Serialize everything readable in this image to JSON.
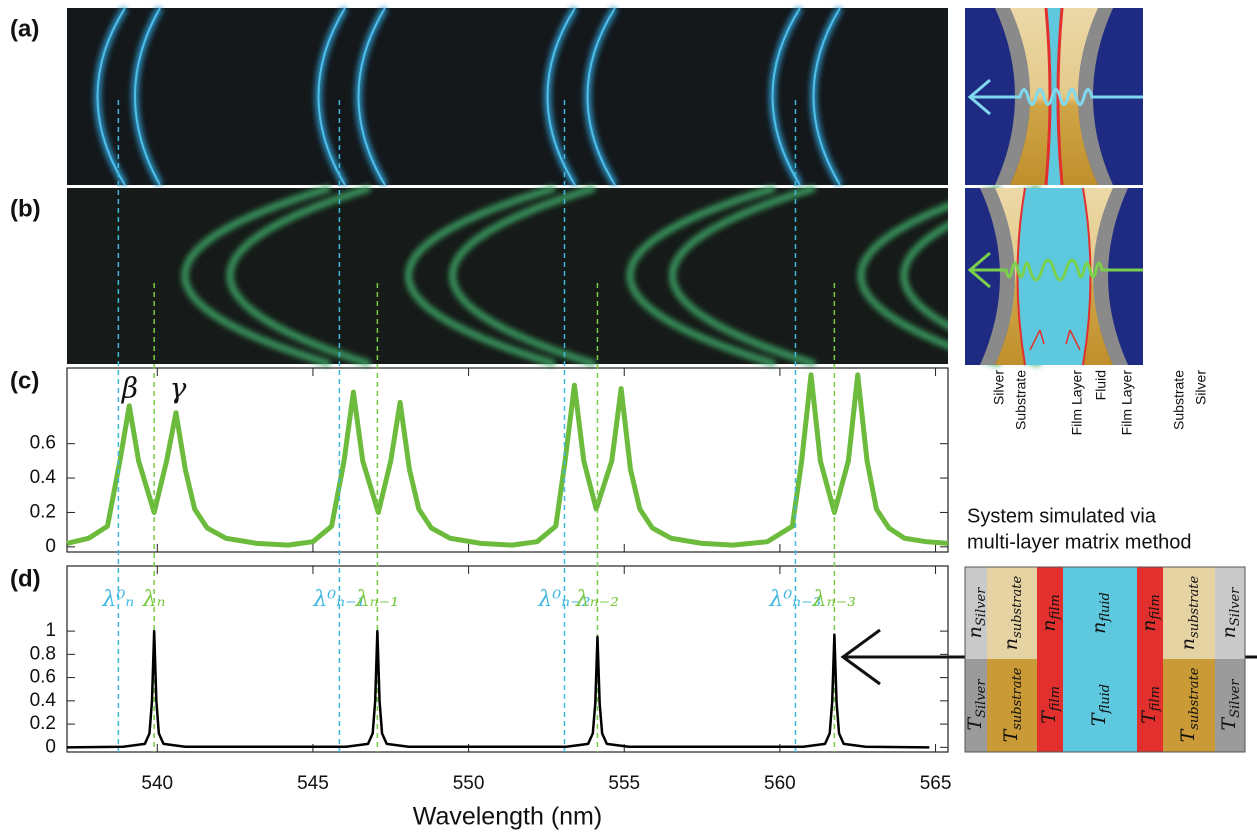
{
  "panel_labels": [
    "(a)",
    "(b)"
  ],
  "diagram": {
    "layer_labels": [
      "Silver",
      "Substrate",
      "Film Layer",
      "Fluid",
      "Film Layer",
      "Substrate",
      "Silver"
    ],
    "caption_lines": [
      "System simulated via",
      "multi-layer matrix method"
    ],
    "symbols": [
      "n",
      "T"
    ],
    "layers": [
      {
        "subscript": "Silver",
        "colors": [
          "#c9c9c9",
          "#9b9b9b"
        ]
      },
      {
        "subscript": "substrate",
        "colors": [
          "#e6d3a3",
          "#c99a35"
        ]
      },
      {
        "subscript": "film",
        "colors": [
          "#e2302e",
          "#e2302e"
        ]
      },
      {
        "subscript": "fluid",
        "colors": [
          "#5ec8de",
          "#5ec8de"
        ]
      },
      {
        "subscript": "film",
        "colors": [
          "#e2302e",
          "#e2302e"
        ]
      },
      {
        "subscript": "substrate",
        "colors": [
          "#e6d3a3",
          "#c99a35"
        ]
      },
      {
        "subscript": "Silver",
        "colors": [
          "#c9c9c9",
          "#9b9b9b"
        ]
      }
    ]
  },
  "chart_data": [
    {
      "type": "line",
      "label": "(c)",
      "show_xtick_labels": false,
      "xlim": [
        537.1,
        565.4
      ],
      "xticks": [
        540,
        545,
        550,
        555,
        560,
        565
      ],
      "ylim": [
        -0.03,
        1.04
      ],
      "yticks": [
        0,
        0.2,
        0.4,
        0.6
      ],
      "annotations": [
        "β",
        "γ"
      ],
      "series": [
        {
          "color": "#6cbb3c",
          "x": [
            537.1,
            537.8,
            538.4,
            538.8,
            539.1,
            539.4,
            539.9,
            540.3,
            540.6,
            540.9,
            541.2,
            541.6,
            542.2,
            543.2,
            544.2,
            545.0,
            545.6,
            546.0,
            546.3,
            546.6,
            547.1,
            547.5,
            547.8,
            548.1,
            548.4,
            548.8,
            549.4,
            550.4,
            551.4,
            552.2,
            552.8,
            553.1,
            553.4,
            553.7,
            554.1,
            554.6,
            554.9,
            555.2,
            555.5,
            555.9,
            556.5,
            557.5,
            558.5,
            559.6,
            560.4,
            560.7,
            561.0,
            561.3,
            561.75,
            562.2,
            562.5,
            562.8,
            563.1,
            563.5,
            564.0,
            564.7,
            565.4
          ],
          "values": [
            0.02,
            0.05,
            0.12,
            0.5,
            0.82,
            0.5,
            0.2,
            0.5,
            0.78,
            0.45,
            0.22,
            0.11,
            0.05,
            0.02,
            0.01,
            0.03,
            0.12,
            0.5,
            0.9,
            0.5,
            0.2,
            0.5,
            0.84,
            0.45,
            0.22,
            0.11,
            0.05,
            0.02,
            0.01,
            0.03,
            0.12,
            0.5,
            0.94,
            0.5,
            0.22,
            0.5,
            0.92,
            0.45,
            0.22,
            0.11,
            0.05,
            0.02,
            0.01,
            0.03,
            0.12,
            0.5,
            1.0,
            0.5,
            0.2,
            0.5,
            1.0,
            0.5,
            0.22,
            0.11,
            0.05,
            0.03,
            0.02
          ]
        }
      ]
    },
    {
      "type": "line",
      "label": "(d)",
      "show_xtick_labels": true,
      "xlabel": "Wavelength (nm)",
      "xlim": [
        537.1,
        565.4
      ],
      "xticks": [
        540,
        545,
        550,
        555,
        560,
        565
      ],
      "ylim": [
        -0.04,
        1.56
      ],
      "yticks": [
        0,
        0.2,
        0.4,
        0.6,
        0.8,
        1
      ],
      "markers": [
        {
          "x": 538.75,
          "label": "λ⁰ₙ",
          "color": "#3fb8e0"
        },
        {
          "x": 539.9,
          "label": "λₙ",
          "color": "#7ac943"
        },
        {
          "x": 545.85,
          "label": "λ⁰ₙ₋₁",
          "color": "#3fb8e0"
        },
        {
          "x": 547.07,
          "label": "λₙ₋₁",
          "color": "#7ac943"
        },
        {
          "x": 553.08,
          "label": "λ⁰ₙ₋₂",
          "color": "#3fb8e0"
        },
        {
          "x": 554.14,
          "label": "λₙ₋₂",
          "color": "#7ac943"
        },
        {
          "x": 560.5,
          "label": "λ⁰ₙ₋₃",
          "color": "#3fb8e0"
        },
        {
          "x": 561.75,
          "label": "λₙ₋₃",
          "color": "#7ac943"
        }
      ],
      "series": [
        {
          "color": "#000000",
          "x": [
            537.1,
            538.9,
            539.6,
            539.75,
            539.83,
            539.9,
            539.97,
            540.05,
            540.2,
            540.9,
            546.07,
            546.77,
            546.92,
            547.0,
            547.07,
            547.14,
            547.22,
            547.37,
            548.07,
            553.14,
            553.84,
            553.99,
            554.07,
            554.14,
            554.21,
            554.29,
            554.44,
            555.14,
            560.75,
            561.45,
            561.6,
            561.68,
            561.75,
            561.82,
            561.9,
            562.05,
            562.75,
            564.8
          ],
          "values": [
            0,
            0.005,
            0.03,
            0.12,
            0.4,
            1,
            0.4,
            0.12,
            0.03,
            0.005,
            0.005,
            0.03,
            0.12,
            0.4,
            1,
            0.4,
            0.12,
            0.03,
            0.005,
            0.005,
            0.03,
            0.12,
            0.38,
            0.95,
            0.38,
            0.12,
            0.03,
            0.005,
            0.005,
            0.03,
            0.12,
            0.39,
            0.97,
            0.39,
            0.12,
            0.03,
            0.005,
            0
          ]
        }
      ]
    }
  ]
}
